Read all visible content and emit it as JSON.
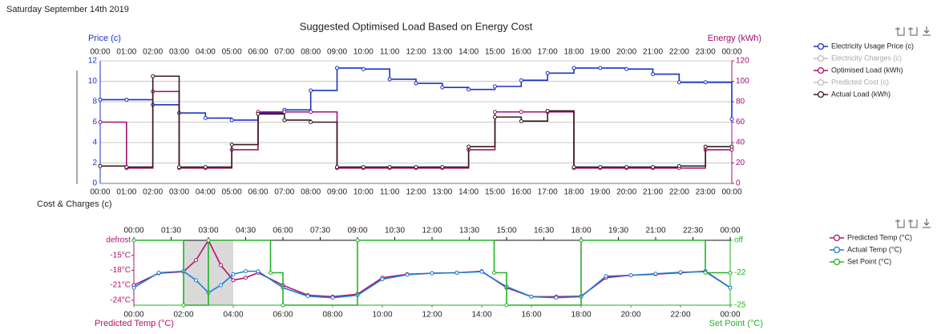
{
  "header": {
    "date": "Saturday September 14th 2019",
    "section_label": "Cost & Charges  (c)"
  },
  "chart_data": [
    {
      "type": "line",
      "title": "Suggested Optimised Load Based on Energy Cost",
      "ylabel": "Price (c)",
      "y2label": "Energy (kWh)",
      "categories": [
        "00:00",
        "01:00",
        "02:00",
        "03:00",
        "04:00",
        "05:00",
        "06:00",
        "07:00",
        "08:00",
        "09:00",
        "10:00",
        "11:00",
        "12:00",
        "13:00",
        "14:00",
        "15:00",
        "16:00",
        "17:00",
        "18:00",
        "19:00",
        "20:00",
        "21:00",
        "22:00",
        "23:00",
        "00:00"
      ],
      "ylim": [
        0,
        12
      ],
      "yticks": [
        0,
        2,
        4,
        6,
        8,
        10,
        12
      ],
      "y2lim": [
        0,
        120
      ],
      "y2ticks": [
        0,
        20,
        40,
        60,
        80,
        100,
        120
      ],
      "grid": true,
      "legend": "right",
      "series": [
        {
          "name": "Electricity Usage Price (c)",
          "color": "#1a33c4",
          "step": true,
          "visible": true,
          "values": [
            8.2,
            8.2,
            7.7,
            6.9,
            6.4,
            6.2,
            6.9,
            7.2,
            9.1,
            11.3,
            11.2,
            10.2,
            9.8,
            9.4,
            9.2,
            9.5,
            10.1,
            10.8,
            11.3,
            11.3,
            11.2,
            10.7,
            9.9,
            9.9,
            6.3
          ]
        },
        {
          "name": "Electricity Charges (c)",
          "color": "#b0b0b0",
          "visible": false
        },
        {
          "name": "Optimised Load (kWh)",
          "color": "#a0106e",
          "axis": "y2",
          "step": true,
          "visible": true,
          "values": [
            60,
            15,
            90,
            15,
            15,
            33,
            70,
            70,
            70,
            15,
            15,
            15,
            15,
            15,
            33,
            70,
            70,
            70,
            15,
            15,
            15,
            15,
            15,
            33,
            33
          ]
        },
        {
          "name": "Predicted Cost (c)",
          "color": "#b0b0b0",
          "visible": false
        },
        {
          "name": "Actual Load (kWh)",
          "color": "#3a1a1a",
          "axis": "y2",
          "step": true,
          "visible": true,
          "values": [
            17,
            16,
            105,
            16,
            16,
            38,
            68,
            62,
            60,
            16,
            16,
            16,
            16,
            16,
            36,
            65,
            61,
            71,
            16,
            16,
            16,
            16,
            17,
            36,
            36
          ]
        }
      ]
    },
    {
      "type": "line",
      "ylabel": "Predicted Temp (°C)",
      "y2label": "Set Point (°C)",
      "xlim": [
        0,
        24
      ],
      "xticks": [
        {
          "value": 0,
          "label": "00:00"
        },
        {
          "value": 2,
          "label": "02:00"
        },
        {
          "value": 4,
          "label": "04:00"
        },
        {
          "value": 6,
          "label": "06:00"
        },
        {
          "value": 8,
          "label": "08:00"
        },
        {
          "value": 10,
          "label": "10:00"
        },
        {
          "value": 12,
          "label": "12:00"
        },
        {
          "value": 14,
          "label": "14:00"
        },
        {
          "value": 16,
          "label": "16:00"
        },
        {
          "value": 18,
          "label": "18:00"
        },
        {
          "value": 20,
          "label": "20:00"
        },
        {
          "value": 22,
          "label": "22:00"
        },
        {
          "value": 24,
          "label": "00:00"
        }
      ],
      "x2ticks": [
        {
          "value": 0,
          "label": "00:00"
        },
        {
          "value": 1.5,
          "label": "01:30"
        },
        {
          "value": 3,
          "label": "03:00"
        },
        {
          "value": 4.5,
          "label": "04:30"
        },
        {
          "value": 6,
          "label": "06:00"
        },
        {
          "value": 7.5,
          "label": "07:30"
        },
        {
          "value": 9,
          "label": "09:00"
        },
        {
          "value": 10.5,
          "label": "10:30"
        },
        {
          "value": 12,
          "label": "12:00"
        },
        {
          "value": 13.5,
          "label": "13:30"
        },
        {
          "value": 15,
          "label": "15:00"
        },
        {
          "value": 16.5,
          "label": "16:30"
        },
        {
          "value": 18,
          "label": "18:00"
        },
        {
          "value": 19.5,
          "label": "19:30"
        },
        {
          "value": 21,
          "label": "21:00"
        },
        {
          "value": 22.5,
          "label": "22:30"
        },
        {
          "value": 24,
          "label": "00:00"
        }
      ],
      "ylim": [
        -25,
        -12
      ],
      "yticks": [
        {
          "value": -12,
          "label": "defrost"
        },
        {
          "value": -15,
          "label": "-15°C"
        },
        {
          "value": -18,
          "label": "-18°C"
        },
        {
          "value": -21,
          "label": "-21°C"
        },
        {
          "value": -24,
          "label": "-24°C"
        }
      ],
      "y2lim": [
        -25,
        -19
      ],
      "y2ticks": [
        {
          "value": -19,
          "label": "off"
        },
        -22,
        -25
      ],
      "grid": false,
      "legend": "right",
      "shade": [
        2,
        4
      ],
      "series": [
        {
          "name": "Predicted Temp (°C)",
          "color": "#b0126e",
          "step": false,
          "visible": true,
          "x": [
            0,
            1,
            2,
            2.5,
            3,
            3.5,
            4,
            4.5,
            5,
            6,
            7,
            8,
            9,
            10,
            11,
            12,
            13,
            14,
            15,
            16,
            17,
            18,
            19,
            20,
            21,
            22,
            23,
            24
          ],
          "values": [
            -21,
            -18.6,
            -18.3,
            -16,
            -12,
            -17,
            -20,
            -19.5,
            -18.5,
            -21,
            -23,
            -23.3,
            -22.8,
            -19.5,
            -18.8,
            -18.6,
            -18.5,
            -18.2,
            -21.5,
            -23.3,
            -23.3,
            -23.2,
            -19.5,
            -19,
            -18.8,
            -18.5,
            -18.2,
            -21.5
          ]
        },
        {
          "name": "Actual Temp (°C)",
          "color": "#1a7fd6",
          "step": false,
          "visible": true,
          "x": [
            0,
            1,
            2,
            2.5,
            3,
            3.5,
            4,
            4.5,
            5,
            6,
            7,
            8,
            9,
            10,
            11,
            12,
            13,
            14,
            15,
            16,
            17,
            18,
            19,
            20,
            21,
            22,
            23,
            24
          ],
          "values": [
            -21.5,
            -18.5,
            -18.2,
            -20,
            -22.5,
            -21,
            -18.8,
            -18.2,
            -18.2,
            -21.5,
            -23.2,
            -23.5,
            -23,
            -19.8,
            -18.9,
            -18.6,
            -18.5,
            -18.3,
            -21.3,
            -23.3,
            -23.5,
            -23.3,
            -19.2,
            -19,
            -18.7,
            -18.4,
            -18.3,
            -21.5
          ]
        },
        {
          "name": "Set Point (°C)",
          "color": "#22b322",
          "axis": "y2",
          "step": true,
          "visible": true,
          "x": [
            0,
            2,
            3,
            5.5,
            6,
            9,
            14.5,
            15,
            18,
            23,
            24
          ],
          "values": [
            -19,
            -25,
            -19,
            -22,
            -25,
            -19,
            -22,
            -25,
            -19,
            -22,
            -22
          ]
        }
      ]
    }
  ]
}
